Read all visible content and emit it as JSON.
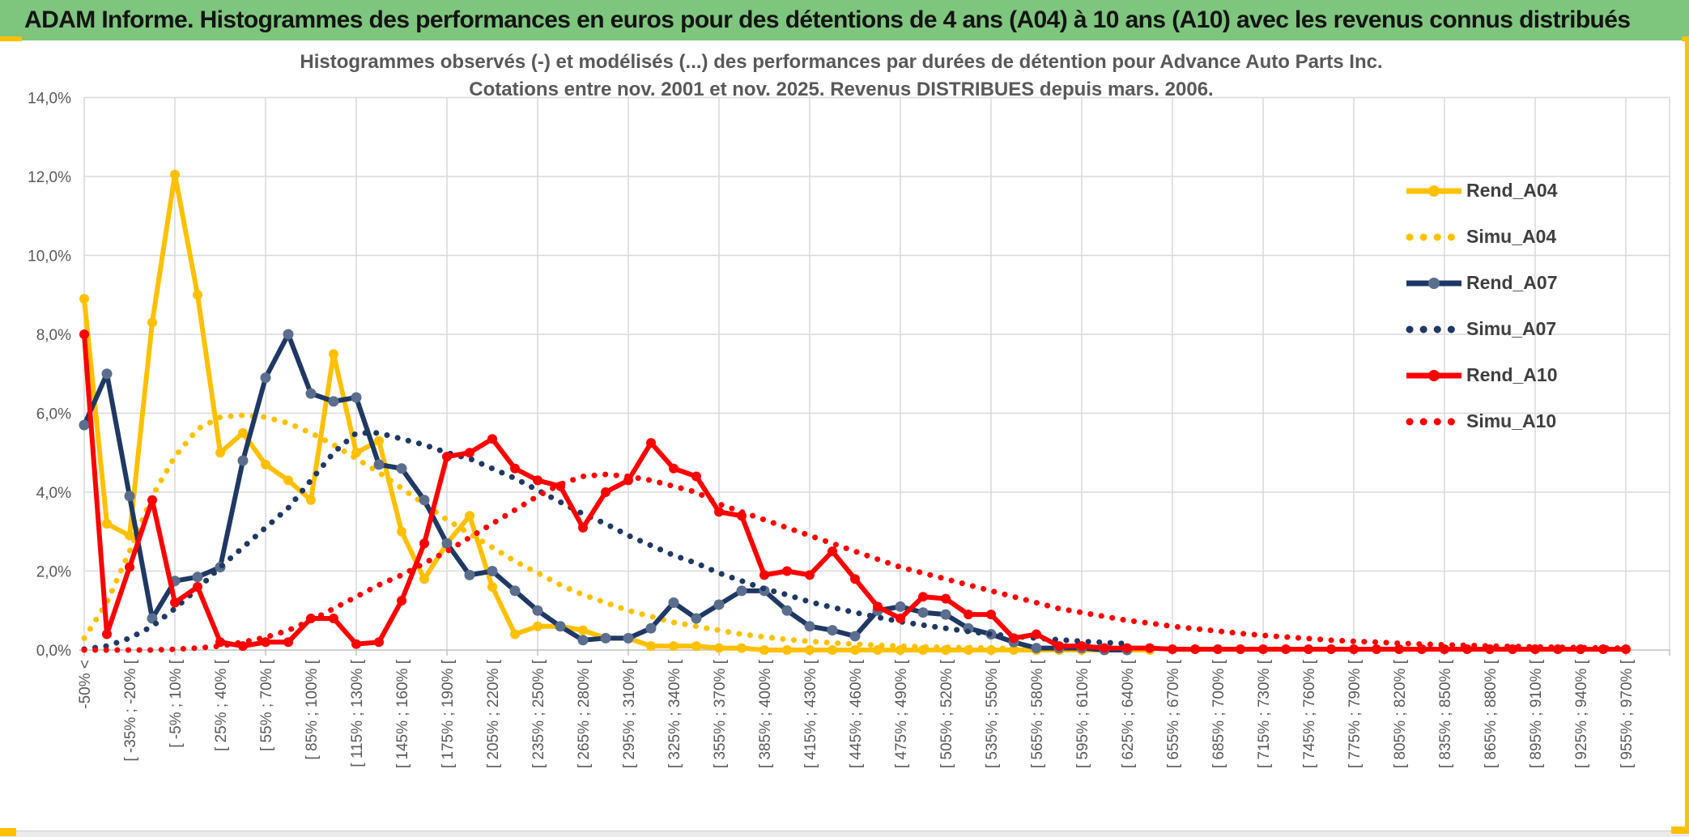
{
  "header": {
    "title": "ADAM Informe. Histogrammes des performances en euros pour des détentions de 4 ans (A04) à 10 ans (A10) avec les revenus connus distribués"
  },
  "chart": {
    "title_line1": "Histogrammes observés (-) et modélisés (...) des performances par durées de détention pour Advance Auto Parts Inc.",
    "title_line2": "Cotations entre nov. 2001 et nov. 2025. Revenus DISTRIBUES depuis mars. 2006."
  },
  "legend": [
    {
      "label": "Rend_A04",
      "color": "#FFC000",
      "style": "solid",
      "marker": "#FFC000"
    },
    {
      "label": "Simu_A04",
      "color": "#FFC000",
      "style": "dotted"
    },
    {
      "label": "Rend_A07",
      "color": "#1F3864",
      "style": "solid",
      "marker": "#5B6E8E"
    },
    {
      "label": "Simu_A07",
      "color": "#1F3864",
      "style": "dotted"
    },
    {
      "label": "Rend_A10",
      "color": "#FF0000",
      "style": "solid",
      "marker": "#FF0000"
    },
    {
      "label": "Simu_A10",
      "color": "#FF0000",
      "style": "dotted"
    }
  ],
  "colors": {
    "header_bg": "#7EC57E",
    "accent_gold": "#FFC000",
    "grid": "#D9D9D9",
    "axis": "#BFBFBF",
    "tick_text": "#595959",
    "strip_bg": "#EBEBEB"
  },
  "chart_data": {
    "type": "line",
    "title": "Histogrammes observés (-) et modélisés (...) des performances par durées de détention pour Advance Auto Parts Inc.",
    "subtitle": "Cotations entre nov. 2001 et nov. 2025. Revenus DISTRIBUES depuis mars. 2006.",
    "grid": true,
    "legend_position": "right",
    "n_points": 69,
    "bin_width_pct": 15,
    "tick_every": 2,
    "x_tick_labels": [
      "-50% <",
      "[ -35% ; -20% [",
      "[ -5% ; 10% [",
      "[ 25% ; 40% [",
      "[ 55% ; 70% [",
      "[ 85% ; 100% [",
      "[ 115% ; 130% [",
      "[ 145% ; 160% [",
      "[ 175% ; 190% [",
      "[ 205% ; 220% [",
      "[ 235% ; 250% [",
      "[ 265% ; 280% [",
      "[ 295% ; 310% [",
      "[ 325% ; 340% [",
      "[ 355% ; 370% [",
      "[ 385% ; 400% [",
      "[ 415% ; 430% [",
      "[ 445% ; 460% [",
      "[ 475% ; 490% [",
      "[ 505% ; 520% [",
      "[ 535% ; 550% [",
      "[ 565% ; 580% [",
      "[ 595% ; 610% [",
      "[ 625% ; 640% [",
      "[ 655% ; 670% [",
      "[ 685% ; 700% [",
      "[ 715% ; 730% [",
      "[ 745% ; 760% [",
      "[ 775% ; 790% [",
      "[ 805% ; 820% [",
      "[ 835% ; 850% [",
      "[ 865% ; 880% [",
      "[ 895% ; 910% [",
      "[ 925% ; 940% [",
      "[ 955% ; 970% ["
    ],
    "y_tick_labels": [
      "0,0%",
      "2,0%",
      "4,0%",
      "6,0%",
      "8,0%",
      "10,0%",
      "12,0%",
      "14,0%"
    ],
    "ylim": [
      0,
      14
    ],
    "series": [
      {
        "name": "Rend_A04",
        "style": "solid",
        "color": "#FFC000",
        "marker_color": "#FFC000",
        "values": [
          8.9,
          3.2,
          2.9,
          8.3,
          12.05,
          9.0,
          5.0,
          5.5,
          4.7,
          4.3,
          3.8,
          7.5,
          5.0,
          5.3,
          3.0,
          1.8,
          2.7,
          3.4,
          1.6,
          0.4,
          0.6,
          0.6,
          0.5,
          0.3,
          0.3,
          0.1,
          0.1,
          0.1,
          0.05,
          0.05,
          0,
          0,
          0,
          0,
          0,
          0,
          0,
          0,
          0,
          0,
          0,
          0,
          0,
          0,
          0,
          0,
          0,
          0
        ]
      },
      {
        "name": "Simu_A04",
        "style": "dotted",
        "color": "#FFC000",
        "values": [
          0.3,
          1.2,
          2.5,
          3.9,
          4.9,
          5.6,
          5.9,
          5.95,
          5.9,
          5.75,
          5.5,
          5.2,
          4.85,
          4.5,
          4.1,
          3.7,
          3.3,
          2.95,
          2.6,
          2.25,
          1.95,
          1.65,
          1.4,
          1.2,
          1.0,
          0.85,
          0.7,
          0.6,
          0.5,
          0.4,
          0.33,
          0.27,
          0.22,
          0.18,
          0.15,
          0.12,
          0.1,
          0.08,
          0.07,
          0.06,
          0.05,
          0.04,
          0.03,
          0.03,
          0.02,
          0.02,
          0.02,
          0.02
        ]
      },
      {
        "name": "Rend_A07",
        "style": "solid",
        "color": "#1F3864",
        "marker_color": "#5B6E8E",
        "values": [
          5.7,
          7.0,
          3.9,
          0.8,
          1.75,
          1.85,
          2.1,
          4.8,
          6.9,
          8.0,
          6.5,
          6.3,
          6.4,
          4.7,
          4.6,
          3.8,
          2.7,
          1.9,
          2.0,
          1.5,
          1.0,
          0.6,
          0.25,
          0.3,
          0.3,
          0.55,
          1.2,
          0.8,
          1.15,
          1.5,
          1.5,
          1.0,
          0.6,
          0.5,
          0.35,
          1.0,
          1.1,
          0.95,
          0.9,
          0.55,
          0.4,
          0.2,
          0.05,
          0.05,
          0.05,
          0,
          0
        ]
      },
      {
        "name": "Simu_A07",
        "style": "dotted",
        "color": "#1F3864",
        "values": [
          0.02,
          0.1,
          0.3,
          0.6,
          1.05,
          1.55,
          2.1,
          2.6,
          3.1,
          3.6,
          4.3,
          5.0,
          5.5,
          5.5,
          5.35,
          5.2,
          5.0,
          4.85,
          4.6,
          4.35,
          4.05,
          3.75,
          3.45,
          3.2,
          2.9,
          2.65,
          2.4,
          2.2,
          1.95,
          1.75,
          1.55,
          1.4,
          1.22,
          1.08,
          0.95,
          0.83,
          0.72,
          0.63,
          0.55,
          0.47,
          0.4,
          0.35,
          0.3,
          0.26,
          0.22,
          0.19,
          0.16
        ]
      },
      {
        "name": "Rend_A10",
        "style": "solid",
        "color": "#FF0000",
        "marker_color": "#FF0000",
        "values": [
          8.0,
          0.4,
          2.1,
          3.8,
          1.2,
          1.6,
          0.2,
          0.1,
          0.2,
          0.2,
          0.8,
          0.8,
          0.15,
          0.2,
          1.25,
          2.7,
          4.9,
          5.0,
          5.35,
          4.6,
          4.3,
          4.15,
          3.1,
          4.0,
          4.3,
          5.25,
          4.6,
          4.4,
          3.5,
          3.4,
          1.9,
          2.0,
          1.9,
          2.5,
          1.8,
          1.1,
          0.8,
          1.35,
          1.3,
          0.9,
          0.9,
          0.3,
          0.4,
          0.1,
          0.1,
          0.05,
          0.05,
          0.05,
          0.02,
          0.02,
          0.02,
          0.02,
          0.02,
          0.02,
          0.02,
          0.02,
          0.02,
          0.02,
          0.02,
          0.02,
          0.02,
          0.02,
          0.02,
          0.02,
          0.02,
          0.02,
          0.02,
          0.02,
          0.02
        ]
      },
      {
        "name": "Simu_A10",
        "style": "dotted",
        "color": "#FF0000",
        "values": [
          0,
          0,
          0,
          0,
          0.02,
          0.05,
          0.1,
          0.2,
          0.32,
          0.5,
          0.75,
          1.05,
          1.35,
          1.65,
          1.9,
          2.2,
          2.5,
          2.85,
          3.2,
          3.55,
          3.9,
          4.2,
          4.4,
          4.45,
          4.4,
          4.3,
          4.15,
          4.0,
          3.7,
          3.5,
          3.3,
          3.1,
          2.9,
          2.7,
          2.5,
          2.3,
          2.1,
          1.95,
          1.8,
          1.65,
          1.5,
          1.35,
          1.2,
          1.05,
          0.95,
          0.85,
          0.75,
          0.68,
          0.6,
          0.54,
          0.48,
          0.42,
          0.37,
          0.33,
          0.29,
          0.25,
          0.22,
          0.2,
          0.17,
          0.15,
          0.13,
          0.12,
          0.1,
          0.09,
          0.08,
          0.07,
          0.06,
          0.05,
          0.05
        ]
      }
    ]
  }
}
